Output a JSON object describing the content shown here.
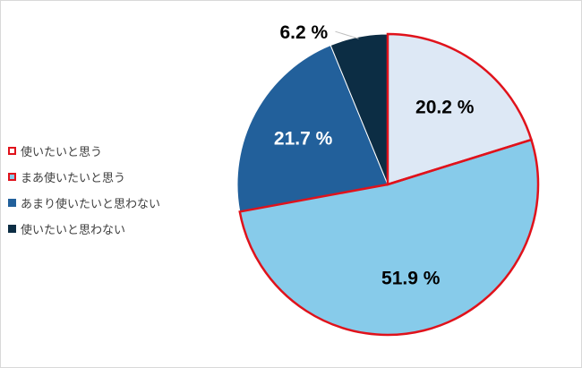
{
  "chart_data": {
    "type": "pie",
    "title": "",
    "legend_position": "left",
    "categories": [
      "使いたいと思う",
      "まあ使いたいと思う",
      "あまり使いたいと思わない",
      "使いたいと思わない"
    ],
    "values": [
      20.2,
      51.9,
      21.7,
      6.2
    ],
    "labels": [
      "20.2 %",
      "51.9 %",
      "21.7 %",
      "6.2 %"
    ],
    "colors": [
      "#dde8f5",
      "#87cbea",
      "#22609b",
      "#0c2d44"
    ],
    "label_colors": [
      "#000000",
      "#000000",
      "#ffffff",
      "#000000"
    ],
    "highlight_border_color": "#e0121b",
    "highlighted": [
      true,
      true,
      false,
      false
    ]
  }
}
